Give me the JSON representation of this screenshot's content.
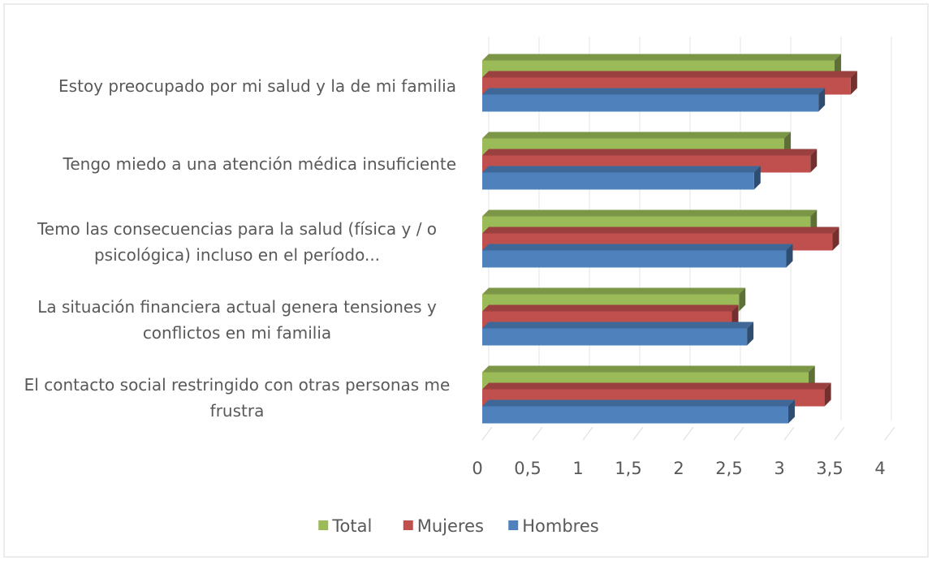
{
  "chart_data": {
    "type": "bar3d",
    "orientation": "horizontal",
    "categories": [
      "Estoy preocupado por mi salud y la de mi familia",
      "Tengo miedo a una atención médica insuficiente",
      "Temo las consecuencias para la salud (física y / o psicológica) incluso en el período...",
      "La situación financiera actual genera tensiones y conflictos en mi familia",
      "El contacto social restringido con otras personas me frustra"
    ],
    "series": [
      {
        "name": "Total",
        "color": "#9bbb59",
        "values": [
          3.5,
          3.0,
          3.26,
          2.55,
          3.24
        ]
      },
      {
        "name": "Mujeres",
        "color": "#c0504d",
        "values": [
          3.66,
          3.26,
          3.48,
          2.48,
          3.4
        ]
      },
      {
        "name": "Hombres",
        "color": "#4f81bd",
        "values": [
          3.34,
          2.7,
          3.02,
          2.63,
          3.04
        ]
      }
    ],
    "xlim": [
      0,
      4
    ],
    "xticks": [
      0,
      {
        "value": 0.5,
        "label": "0,5"
      },
      1,
      {
        "value": 1.5,
        "label": "1,5"
      },
      2,
      {
        "value": 2.5,
        "label": "2,5"
      },
      3,
      {
        "value": 3.5,
        "label": "3,5"
      },
      4
    ],
    "grid": true,
    "legend": "bottom"
  }
}
